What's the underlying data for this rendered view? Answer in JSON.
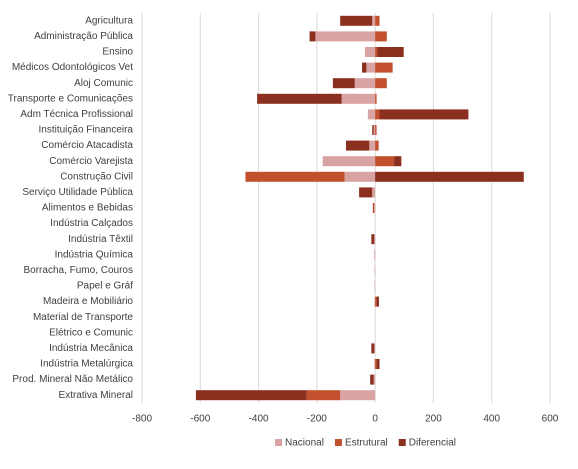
{
  "chart_data": {
    "type": "bar",
    "orientation": "horizontal",
    "stacked": true,
    "categories": [
      "Agricultura",
      "Administração Pública",
      "Ensino",
      "Médicos Odontológicos Vet",
      "Aloj Comunic",
      "Transporte e Comunicações",
      "Adm Técnica Profissional",
      "Instituição Financeira",
      "Comércio Atacadista",
      "Comércio Varejista",
      "Construção Civil",
      "Serviço Utilidade Pública",
      "Alimentos e Bebidas",
      "Indústria Calçados",
      "Indústria Têxtil",
      "Indústria Química",
      "Borracha, Fumo, Couros",
      "Papel e Gráf",
      "Madeira e Mobiliário",
      "Material de Transporte",
      "Elétrico e Comunic",
      "Indústria Mecânica",
      "Indústria Metalúrgica",
      "Prod. Mineral Não Metálico",
      "Extrativa Mineral"
    ],
    "series": [
      {
        "name": "Nacional",
        "color": "#d9a3a3",
        "values": [
          -10,
          -205,
          -35,
          -30,
          -70,
          -115,
          -25,
          -5,
          -20,
          -180,
          -105,
          -10,
          -3,
          0,
          -3,
          -3,
          -2,
          -2,
          -2,
          0,
          0,
          -3,
          -3,
          -5,
          -120
        ]
      },
      {
        "name": "Estrutural",
        "color": "#c3502d",
        "values": [
          15,
          40,
          8,
          60,
          40,
          5,
          15,
          5,
          12,
          65,
          -340,
          0,
          -5,
          0,
          0,
          0,
          0,
          0,
          5,
          0,
          0,
          0,
          5,
          0,
          -115
        ]
      },
      {
        "name": "Diferencial",
        "color": "#8b2f1e",
        "values": [
          -110,
          -20,
          90,
          -15,
          -75,
          -290,
          305,
          -5,
          -80,
          25,
          510,
          -45,
          0,
          0,
          -10,
          0,
          0,
          0,
          8,
          0,
          0,
          -10,
          10,
          -12,
          -380
        ]
      }
    ],
    "xlim": [
      -800,
      600
    ],
    "xticks": [
      -800,
      -600,
      -400,
      -200,
      0,
      200,
      400,
      600
    ],
    "grid": true,
    "legend": "bottom"
  }
}
